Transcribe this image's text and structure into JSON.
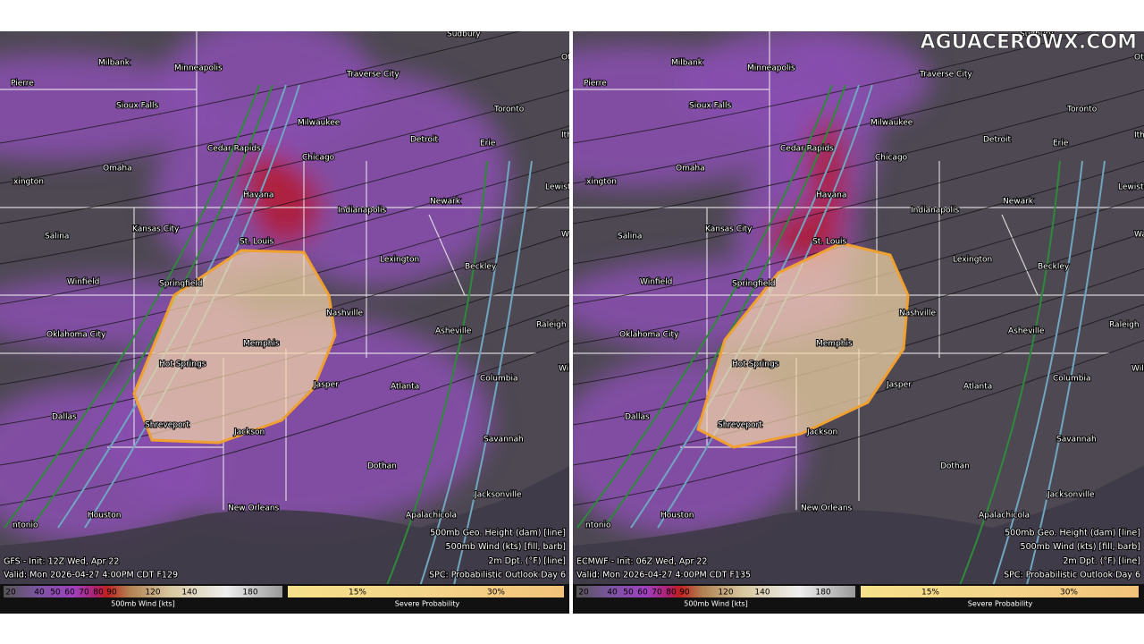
{
  "watermark": "AGUACEROWX.COM",
  "panels": [
    {
      "init": "GFS - Init: 12Z Wed, Apr 22",
      "valid": "Valid: Mon 2026-04-27 4:00PM CDT F129"
    },
    {
      "init": "ECMWF - Init: 06Z Wed, Apr 22",
      "valid": "Valid: Mon 2026-04-27 4:00PM CDT F135"
    }
  ],
  "cities": [
    "Sudbury",
    "Milbank",
    "Minneapolis",
    "Otta",
    "Pierre",
    "Traverse City",
    "Sioux Falls",
    "Toronto",
    "Milwaukee",
    "Ithac",
    "Cedar Rapids",
    "Detroit",
    "Erie",
    "Omaha",
    "Chicago",
    "xington",
    "Havana",
    "Indianapolis",
    "Newark",
    "Lewistown",
    "Kansas City",
    "Salina",
    "St. Louis",
    "Lexington",
    "Washi",
    "Beckley",
    "Winfield",
    "Springfield",
    "Nashville",
    "Raleigh",
    "Oklahoma City",
    "Asheville",
    "Memphis",
    "Hot Springs",
    "Columbia",
    "Wilmingt",
    "Jasper",
    "Atlanta",
    "Dallas",
    "Shreveport",
    "Jackson",
    "Savannah",
    "Dothan",
    "Jacksonville",
    "New Orleans",
    "Houston",
    "Apalachicola",
    "ntonio"
  ],
  "legend": [
    "500mb Geo. Height (dam) [line]",
    "500mb Wind (kts) [fill, barb]",
    "2m Dpt. (°F) [line]",
    "SPC: Probabilistic Outlook Day 6"
  ],
  "wind_scale": {
    "ticks": [
      20,
      40,
      50,
      60,
      70,
      80,
      90,
      120,
      140,
      180
    ],
    "label": "500mb Wind [kts]"
  },
  "severe_scale": {
    "ticks": [
      "15%",
      "30%"
    ],
    "label": "Severe Probability"
  }
}
